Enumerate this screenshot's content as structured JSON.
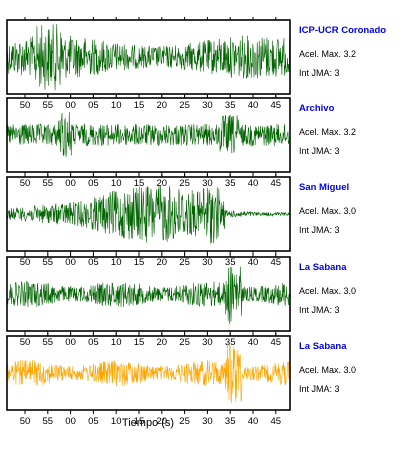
{
  "chart_data": {
    "type": "line",
    "xlabel": "Tiempo (s)",
    "x_ticks": [
      "50",
      "55",
      "00",
      "05",
      "10",
      "15",
      "20",
      "25",
      "30",
      "35",
      "40",
      "45"
    ],
    "panels": [
      {
        "station": "ICP-UCR Coronado",
        "accel_label": "Acel. Max. 3.2",
        "int_label": "Int JMA: 3",
        "color": "#006400"
      },
      {
        "station": "Archivo",
        "accel_label": "Acel. Max. 3.2",
        "int_label": "Int JMA: 3",
        "color": "#006400"
      },
      {
        "station": "San Miguel",
        "accel_label": "Acel. Max. 3.0",
        "int_label": "Int JMA: 3",
        "color": "#006400"
      },
      {
        "station": "La Sabana",
        "accel_label": "Acel. Max. 3.0",
        "int_label": "Int JMA: 3",
        "color": "#006400"
      },
      {
        "station": "La Sabana",
        "accel_label": "Acel. Max. 3.0",
        "int_label": "Int JMA: 3",
        "color": "#ffa500"
      }
    ]
  }
}
